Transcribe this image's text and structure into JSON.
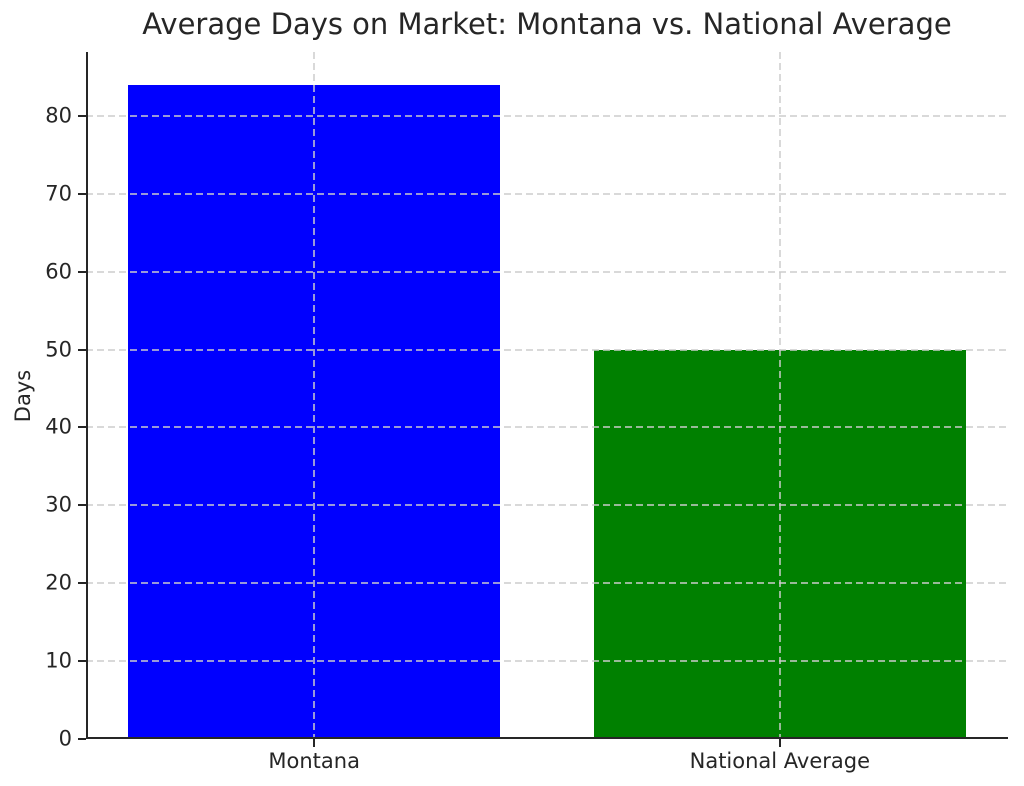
{
  "chart_data": {
    "type": "bar",
    "title": "Average Days on Market: Montana vs. National Average",
    "xlabel": "",
    "ylabel": "Days",
    "categories": [
      "Montana",
      "National Average"
    ],
    "values": [
      84,
      50
    ],
    "bar_colors": [
      "#0000ff",
      "#008000"
    ],
    "bar_width": 0.8,
    "xlim": [
      -0.49,
      1.49
    ],
    "ylim": [
      0,
      88.2
    ],
    "yticks": [
      0,
      10,
      20,
      30,
      40,
      50,
      60,
      70,
      80
    ],
    "grid": "both-axes-dashed-above-bars",
    "grid_color": "#cccccc",
    "spine_color": "#262626",
    "text_color": "#262626",
    "legend": "none",
    "background_color": "#ffffff"
  }
}
